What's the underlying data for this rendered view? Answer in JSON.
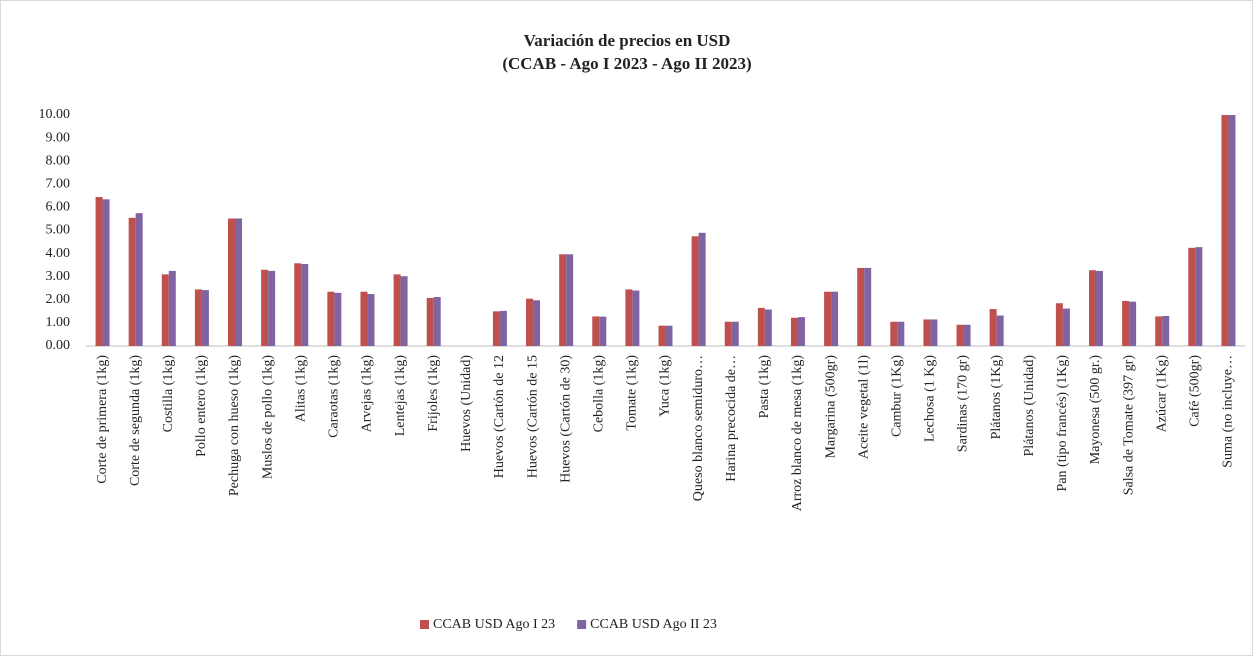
{
  "chart_data": {
    "type": "bar",
    "title": "Variación de precios en USD",
    "subtitle": "(CCAB - Ago I 2023 - Ago II 2023)",
    "categories": [
      "Corte de primera (1kg)",
      "Corte de segunda (1kg)",
      "Costilla (1kg)",
      "Pollo entero (1kg)",
      "Pechuga con hueso (1kg)",
      "Muslos de pollo (1kg)",
      "Alitas (1kg)",
      "Caraotas (1kg)",
      "Arvejas (1kg)",
      "Lentejas (1kg)",
      "Frijoles (1kg)",
      "Huevos (Unidad)",
      "Huevos (Cartón de 12",
      "Huevos (Cartón de 15",
      "Huevos (Cartón de 30)",
      "Cebolla (1kg)",
      "Tomate (1kg)",
      "Yuca (1kg)",
      "Queso blanco semiduro…",
      "Harina precocida de…",
      "Pasta (1kg)",
      "Arroz blanco de mesa (1kg)",
      "Margarina (500gr)",
      "Aceite vegetal (1l)",
      "Cambur (1Kg)",
      "Lechosa (1 Kg)",
      "Sardinas (170 gr)",
      "Plátanos (1Kg)",
      "Plátanos (Unidad)",
      "Pan (tipo francés) (1Kg)",
      "Mayonesa (500 gr.)",
      "Salsa de Tomate (397 gr)",
      "Azúcar (1Kg)",
      "Café (500gr)",
      "Suma (no incluye…"
    ],
    "series": [
      {
        "name": "CCAB USD Ago I 23",
        "color": "#c0504d",
        "values": [
          6.45,
          5.55,
          3.1,
          2.45,
          5.52,
          3.3,
          3.58,
          2.35,
          2.35,
          3.1,
          2.08,
          null,
          1.5,
          2.05,
          3.97,
          1.28,
          2.45,
          0.88,
          4.75,
          1.05,
          1.65,
          1.22,
          2.35,
          3.38,
          1.05,
          1.15,
          0.92,
          1.6,
          null,
          1.85,
          3.28,
          1.95,
          1.28,
          4.25,
          10
        ]
      },
      {
        "name": "CCAB USD Ago II 23",
        "color": "#8064a2",
        "values": [
          6.35,
          5.75,
          3.25,
          2.42,
          5.52,
          3.25,
          3.55,
          2.3,
          2.25,
          3.02,
          2.12,
          null,
          1.52,
          1.98,
          3.97,
          1.27,
          2.4,
          0.88,
          4.9,
          1.05,
          1.58,
          1.25,
          2.35,
          3.38,
          1.05,
          1.15,
          0.92,
          1.32,
          null,
          1.62,
          3.25,
          1.92,
          1.3,
          4.28,
          10
        ]
      }
    ],
    "ylim": [
      0,
      10
    ],
    "yticks": [
      {
        "value": 0,
        "label": "0.00"
      },
      {
        "value": 1,
        "label": "1.00"
      },
      {
        "value": 2,
        "label": "2.00"
      },
      {
        "value": 3,
        "label": "3.00"
      },
      {
        "value": 4,
        "label": "4.00"
      },
      {
        "value": 5,
        "label": "5.00"
      },
      {
        "value": 6,
        "label": "6.00"
      },
      {
        "value": 7,
        "label": "7.00"
      },
      {
        "value": 8,
        "label": "8.00"
      },
      {
        "value": 9,
        "label": "9.00"
      },
      {
        "value": 10,
        "label": "10.00"
      }
    ],
    "grid": false,
    "legend": "bottom"
  }
}
